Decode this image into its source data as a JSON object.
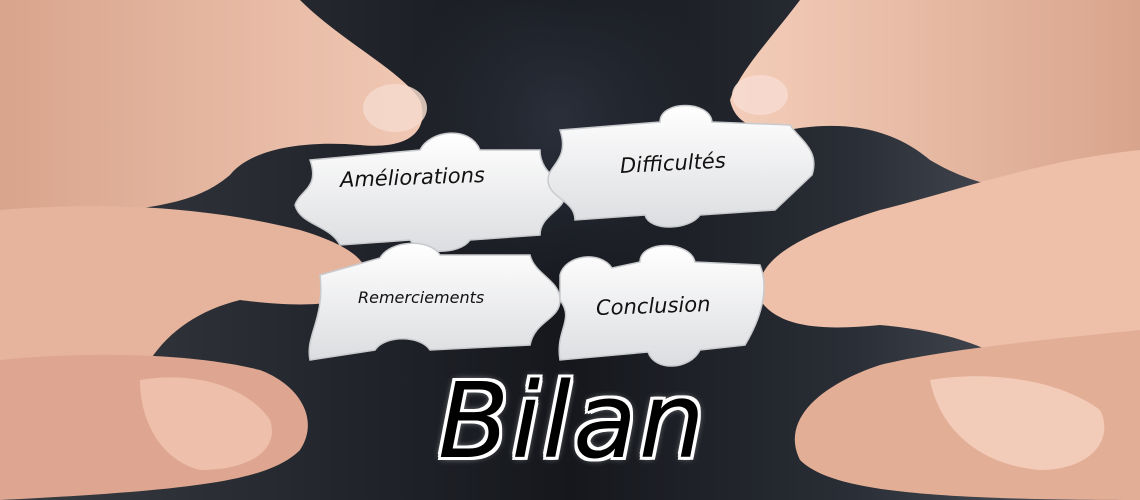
{
  "puzzle_pieces": {
    "top_left": "Améliorations",
    "top_right": "Difficultés",
    "bottom_left": "Remerciements",
    "bottom_right": "Conclusion"
  },
  "title": "Bilan",
  "colors": {
    "piece": "#f2f2f2",
    "skin": "#e8b9a3",
    "text": "#111111",
    "title_outline": "#ffffff"
  }
}
